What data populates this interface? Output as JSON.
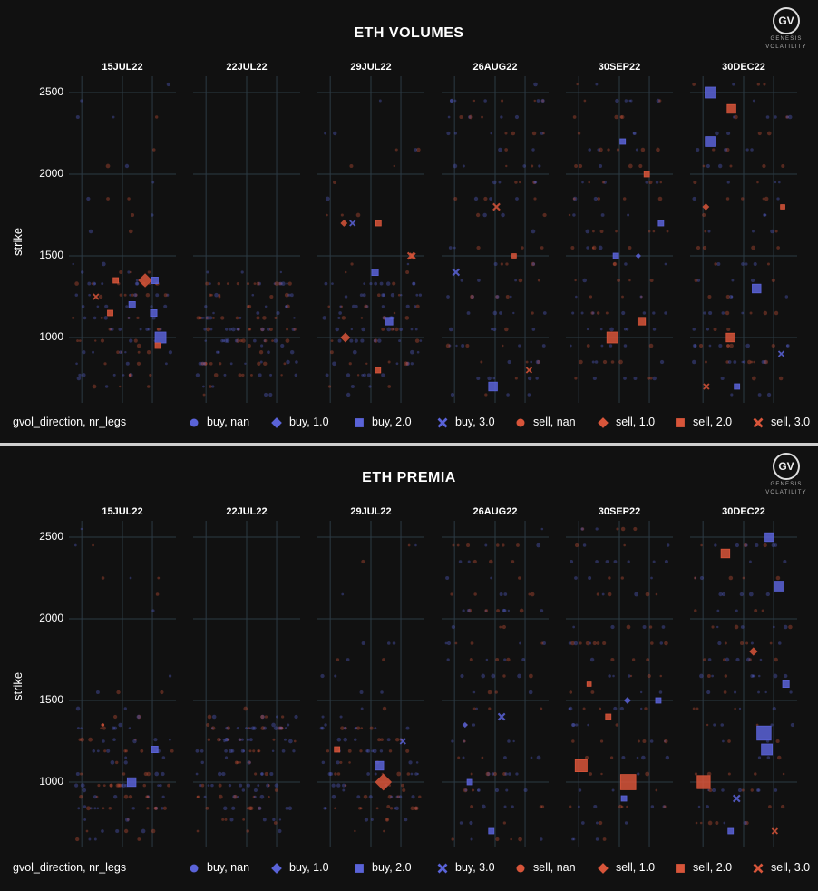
{
  "colors": {
    "buy": "#5a63d8",
    "sell": "#d8553a",
    "grid": "#2c3a44",
    "bg": "#111111"
  },
  "logo": {
    "initials": "GV",
    "line1": "GENESIS",
    "line2": "VOLATILITY"
  },
  "legend": {
    "title": "gvol_direction, nr_legs",
    "items": [
      {
        "label": "buy, nan",
        "symbol": "circle",
        "dir": "buy"
      },
      {
        "label": "buy, 1.0",
        "symbol": "diamond",
        "dir": "buy"
      },
      {
        "label": "buy, 2.0",
        "symbol": "square",
        "dir": "buy"
      },
      {
        "label": "buy, 3.0",
        "symbol": "x",
        "dir": "buy"
      },
      {
        "label": "sell, nan",
        "symbol": "circle",
        "dir": "sell"
      },
      {
        "label": "sell, 1.0",
        "symbol": "diamond",
        "dir": "sell"
      },
      {
        "label": "sell, 2.0",
        "symbol": "square",
        "dir": "sell"
      },
      {
        "label": "sell, 3.0",
        "symbol": "x",
        "dir": "sell"
      }
    ]
  },
  "chart_data": [
    {
      "type": "scatter",
      "title": "ETH VOLUMES",
      "ylabel": "strike",
      "yticks": [
        1000,
        1500,
        2000,
        2500
      ],
      "ylim": [
        600,
        2600
      ],
      "facets": [
        "15JUL22",
        "22JUL22",
        "29JUL22",
        "26AUG22",
        "30SEP22",
        "30DEC22"
      ],
      "grid": true,
      "highlights": [
        {
          "facet": "15JUL22",
          "strike": 1000,
          "dir": "buy",
          "symbol": "square",
          "size": 10
        },
        {
          "facet": "15JUL22",
          "strike": 1350,
          "dir": "sell",
          "symbol": "diamond",
          "size": 10
        },
        {
          "facet": "15JUL22",
          "strike": 1350,
          "dir": "buy",
          "symbol": "square",
          "size": 6
        },
        {
          "facet": "15JUL22",
          "strike": 1200,
          "dir": "buy",
          "symbol": "square",
          "size": 6
        },
        {
          "facet": "15JUL22",
          "strike": 1150,
          "dir": "buy",
          "symbol": "square",
          "size": 6
        },
        {
          "facet": "15JUL22",
          "strike": 1250,
          "dir": "sell",
          "symbol": "x",
          "size": 5
        },
        {
          "facet": "15JUL22",
          "strike": 950,
          "dir": "sell",
          "symbol": "square",
          "size": 5
        },
        {
          "facet": "15JUL22",
          "strike": 1150,
          "dir": "sell",
          "symbol": "square",
          "size": 5
        },
        {
          "facet": "15JUL22",
          "strike": 1350,
          "dir": "sell",
          "symbol": "square",
          "size": 5
        },
        {
          "facet": "29JUL22",
          "strike": 1000,
          "dir": "sell",
          "symbol": "diamond",
          "size": 7
        },
        {
          "facet": "29JUL22",
          "strike": 1100,
          "dir": "buy",
          "symbol": "square",
          "size": 7
        },
        {
          "facet": "29JUL22",
          "strike": 1500,
          "dir": "sell",
          "symbol": "x",
          "size": 6
        },
        {
          "facet": "29JUL22",
          "strike": 1500,
          "dir": "sell",
          "symbol": "x",
          "size": 5
        },
        {
          "facet": "29JUL22",
          "strike": 1700,
          "dir": "buy",
          "symbol": "x",
          "size": 5
        },
        {
          "facet": "29JUL22",
          "strike": 1700,
          "dir": "sell",
          "symbol": "diamond",
          "size": 5
        },
        {
          "facet": "29JUL22",
          "strike": 1700,
          "dir": "sell",
          "symbol": "square",
          "size": 5
        },
        {
          "facet": "29JUL22",
          "strike": 1400,
          "dir": "buy",
          "symbol": "square",
          "size": 6
        },
        {
          "facet": "29JUL22",
          "strike": 800,
          "dir": "sell",
          "symbol": "square",
          "size": 5
        },
        {
          "facet": "26AUG22",
          "strike": 700,
          "dir": "buy",
          "symbol": "square",
          "size": 8
        },
        {
          "facet": "26AUG22",
          "strike": 800,
          "dir": "sell",
          "symbol": "x",
          "size": 5
        },
        {
          "facet": "26AUG22",
          "strike": 1800,
          "dir": "sell",
          "symbol": "x",
          "size": 6
        },
        {
          "facet": "26AUG22",
          "strike": 1400,
          "dir": "buy",
          "symbol": "x",
          "size": 6
        },
        {
          "facet": "26AUG22",
          "strike": 1500,
          "dir": "sell",
          "symbol": "square",
          "size": 4
        },
        {
          "facet": "30SEP22",
          "strike": 1000,
          "dir": "sell",
          "symbol": "square",
          "size": 10
        },
        {
          "facet": "30SEP22",
          "strike": 1100,
          "dir": "sell",
          "symbol": "square",
          "size": 7
        },
        {
          "facet": "30SEP22",
          "strike": 1500,
          "dir": "buy",
          "symbol": "square",
          "size": 5
        },
        {
          "facet": "30SEP22",
          "strike": 1500,
          "dir": "buy",
          "symbol": "diamond",
          "size": 4
        },
        {
          "facet": "30SEP22",
          "strike": 1700,
          "dir": "buy",
          "symbol": "square",
          "size": 5
        },
        {
          "facet": "30SEP22",
          "strike": 2200,
          "dir": "buy",
          "symbol": "square",
          "size": 5
        },
        {
          "facet": "30SEP22",
          "strike": 2000,
          "dir": "sell",
          "symbol": "square",
          "size": 5
        },
        {
          "facet": "30DEC22",
          "strike": 2500,
          "dir": "buy",
          "symbol": "square",
          "size": 10
        },
        {
          "facet": "30DEC22",
          "strike": 2400,
          "dir": "sell",
          "symbol": "square",
          "size": 8
        },
        {
          "facet": "30DEC22",
          "strike": 2200,
          "dir": "buy",
          "symbol": "square",
          "size": 9
        },
        {
          "facet": "30DEC22",
          "strike": 1300,
          "dir": "buy",
          "symbol": "square",
          "size": 8
        },
        {
          "facet": "30DEC22",
          "strike": 1000,
          "dir": "sell",
          "symbol": "square",
          "size": 8
        },
        {
          "facet": "30DEC22",
          "strike": 1800,
          "dir": "sell",
          "symbol": "diamond",
          "size": 5
        },
        {
          "facet": "30DEC22",
          "strike": 1800,
          "dir": "sell",
          "symbol": "square",
          "size": 4
        },
        {
          "facet": "30DEC22",
          "strike": 900,
          "dir": "buy",
          "symbol": "x",
          "size": 5
        },
        {
          "facet": "30DEC22",
          "strike": 700,
          "dir": "sell",
          "symbol": "x",
          "size": 5
        },
        {
          "facet": "30DEC22",
          "strike": 700,
          "dir": "buy",
          "symbol": "square",
          "size": 5
        }
      ]
    },
    {
      "type": "scatter",
      "title": "ETH PREMIA",
      "ylabel": "strike",
      "yticks": [
        1000,
        1500,
        2000,
        2500
      ],
      "ylim": [
        600,
        2600
      ],
      "facets": [
        "15JUL22",
        "22JUL22",
        "29JUL22",
        "26AUG22",
        "30SEP22",
        "30DEC22"
      ],
      "grid": true,
      "highlights": [
        {
          "facet": "15JUL22",
          "strike": 1000,
          "dir": "buy",
          "symbol": "square",
          "size": 8
        },
        {
          "facet": "15JUL22",
          "strike": 1200,
          "dir": "buy",
          "symbol": "square",
          "size": 6
        },
        {
          "facet": "15JUL22",
          "strike": 1350,
          "dir": "sell",
          "symbol": "circle",
          "size": 3
        },
        {
          "facet": "29JUL22",
          "strike": 1000,
          "dir": "sell",
          "symbol": "diamond",
          "size": 12
        },
        {
          "facet": "29JUL22",
          "strike": 1100,
          "dir": "buy",
          "symbol": "square",
          "size": 8
        },
        {
          "facet": "29JUL22",
          "strike": 1250,
          "dir": "buy",
          "symbol": "x",
          "size": 5
        },
        {
          "facet": "29JUL22",
          "strike": 1200,
          "dir": "sell",
          "symbol": "square",
          "size": 5
        },
        {
          "facet": "26AUG22",
          "strike": 1400,
          "dir": "buy",
          "symbol": "x",
          "size": 6
        },
        {
          "facet": "26AUG22",
          "strike": 1350,
          "dir": "buy",
          "symbol": "diamond",
          "size": 4
        },
        {
          "facet": "26AUG22",
          "strike": 700,
          "dir": "buy",
          "symbol": "square",
          "size": 5
        },
        {
          "facet": "26AUG22",
          "strike": 1000,
          "dir": "buy",
          "symbol": "square",
          "size": 5
        },
        {
          "facet": "30SEP22",
          "strike": 1000,
          "dir": "sell",
          "symbol": "square",
          "size": 14
        },
        {
          "facet": "30SEP22",
          "strike": 1100,
          "dir": "sell",
          "symbol": "square",
          "size": 11
        },
        {
          "facet": "30SEP22",
          "strike": 1500,
          "dir": "buy",
          "symbol": "square",
          "size": 5
        },
        {
          "facet": "30SEP22",
          "strike": 1500,
          "dir": "buy",
          "symbol": "diamond",
          "size": 5
        },
        {
          "facet": "30SEP22",
          "strike": 1400,
          "dir": "sell",
          "symbol": "square",
          "size": 5
        },
        {
          "facet": "30SEP22",
          "strike": 1600,
          "dir": "sell",
          "symbol": "square",
          "size": 4
        },
        {
          "facet": "30SEP22",
          "strike": 900,
          "dir": "buy",
          "symbol": "square",
          "size": 5
        },
        {
          "facet": "30DEC22",
          "strike": 2500,
          "dir": "buy",
          "symbol": "square",
          "size": 8
        },
        {
          "facet": "30DEC22",
          "strike": 2400,
          "dir": "sell",
          "symbol": "square",
          "size": 8
        },
        {
          "facet": "30DEC22",
          "strike": 2200,
          "dir": "buy",
          "symbol": "square",
          "size": 9
        },
        {
          "facet": "30DEC22",
          "strike": 1300,
          "dir": "buy",
          "symbol": "square",
          "size": 13
        },
        {
          "facet": "30DEC22",
          "strike": 1200,
          "dir": "buy",
          "symbol": "square",
          "size": 10
        },
        {
          "facet": "30DEC22",
          "strike": 1000,
          "dir": "sell",
          "symbol": "square",
          "size": 12
        },
        {
          "facet": "30DEC22",
          "strike": 1800,
          "dir": "sell",
          "symbol": "diamond",
          "size": 6
        },
        {
          "facet": "30DEC22",
          "strike": 1600,
          "dir": "buy",
          "symbol": "square",
          "size": 6
        },
        {
          "facet": "30DEC22",
          "strike": 900,
          "dir": "buy",
          "symbol": "x",
          "size": 6
        },
        {
          "facet": "30DEC22",
          "strike": 700,
          "dir": "sell",
          "symbol": "x",
          "size": 5
        },
        {
          "facet": "30DEC22",
          "strike": 700,
          "dir": "buy",
          "symbol": "square",
          "size": 5
        }
      ]
    }
  ]
}
